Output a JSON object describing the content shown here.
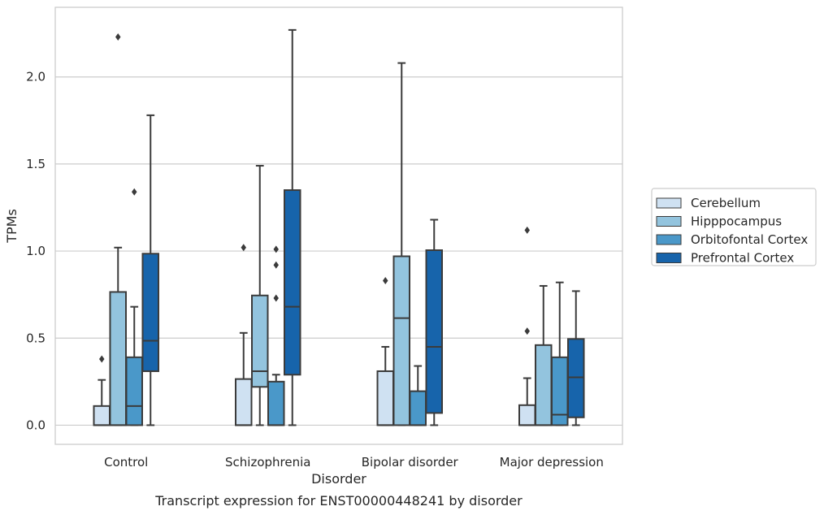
{
  "chart_data": {
    "type": "box",
    "title": "",
    "caption": "Transcript expression for ENST00000448241 by disorder",
    "xlabel": "Disorder",
    "ylabel": "TPMs",
    "ylim": [
      -0.11,
      2.4
    ],
    "yticks": [
      0.0,
      0.5,
      1.0,
      1.5,
      2.0
    ],
    "ytick_labels": [
      "0.0",
      "0.5",
      "1.0",
      "1.5",
      "2.0"
    ],
    "grid": "horizontal",
    "legend_position": "right",
    "categories": [
      "Control",
      "Schizophrenia",
      "Bipolar disorder",
      "Major depression"
    ],
    "series": [
      {
        "name": "Cerebellum",
        "color": "#cfe1f2",
        "boxes": [
          {
            "whisker_low": 0.0,
            "q1": 0.0,
            "median": 0.0,
            "q3": 0.11,
            "whisker_high": 0.26,
            "outliers": [
              0.38
            ]
          },
          {
            "whisker_low": 0.0,
            "q1": 0.0,
            "median": 0.0,
            "q3": 0.265,
            "whisker_high": 0.53,
            "outliers": [
              1.02
            ]
          },
          {
            "whisker_low": 0.0,
            "q1": 0.0,
            "median": 0.0,
            "q3": 0.31,
            "whisker_high": 0.45,
            "outliers": [
              0.83
            ]
          },
          {
            "whisker_low": 0.0,
            "q1": 0.0,
            "median": 0.0,
            "q3": 0.115,
            "whisker_high": 0.27,
            "outliers": [
              0.54,
              1.12
            ]
          }
        ]
      },
      {
        "name": "Hipppocampus",
        "color": "#93c4de",
        "boxes": [
          {
            "whisker_low": 0.0,
            "q1": 0.0,
            "median": 0.0,
            "q3": 0.765,
            "whisker_high": 1.02,
            "outliers": [
              2.23
            ]
          },
          {
            "whisker_low": 0.0,
            "q1": 0.22,
            "median": 0.31,
            "q3": 0.745,
            "whisker_high": 1.49,
            "outliers": []
          },
          {
            "whisker_low": 0.0,
            "q1": 0.0,
            "median": 0.615,
            "q3": 0.97,
            "whisker_high": 2.08,
            "outliers": []
          },
          {
            "whisker_low": 0.0,
            "q1": 0.0,
            "median": 0.0,
            "q3": 0.46,
            "whisker_high": 0.8,
            "outliers": []
          }
        ]
      },
      {
        "name": "Orbitofontal Cortex",
        "color": "#4a98c9",
        "boxes": [
          {
            "whisker_low": 0.0,
            "q1": 0.0,
            "median": 0.11,
            "q3": 0.39,
            "whisker_high": 0.68,
            "outliers": [
              1.34
            ]
          },
          {
            "whisker_low": 0.0,
            "q1": 0.0,
            "median": 0.0,
            "q3": 0.25,
            "whisker_high": 0.29,
            "outliers": [
              0.73,
              0.92,
              1.01
            ]
          },
          {
            "whisker_low": 0.0,
            "q1": 0.0,
            "median": 0.0,
            "q3": 0.195,
            "whisker_high": 0.34,
            "outliers": []
          },
          {
            "whisker_low": 0.0,
            "q1": 0.0,
            "median": 0.06,
            "q3": 0.39,
            "whisker_high": 0.82,
            "outliers": []
          }
        ]
      },
      {
        "name": "Prefrontal Cortex",
        "color": "#1764ab",
        "boxes": [
          {
            "whisker_low": 0.0,
            "q1": 0.31,
            "median": 0.485,
            "q3": 0.985,
            "whisker_high": 1.78,
            "outliers": []
          },
          {
            "whisker_low": 0.0,
            "q1": 0.29,
            "median": 0.68,
            "q3": 1.35,
            "whisker_high": 2.27,
            "outliers": []
          },
          {
            "whisker_low": 0.0,
            "q1": 0.07,
            "median": 0.45,
            "q3": 1.005,
            "whisker_high": 1.18,
            "outliers": []
          },
          {
            "whisker_low": 0.0,
            "q1": 0.045,
            "median": 0.275,
            "q3": 0.495,
            "whisker_high": 0.77,
            "outliers": []
          }
        ]
      }
    ]
  },
  "colors": {
    "grid": "#cccccc",
    "frame": "#cccccc",
    "box_edge": "#3b3b3b",
    "text": "#262626"
  }
}
